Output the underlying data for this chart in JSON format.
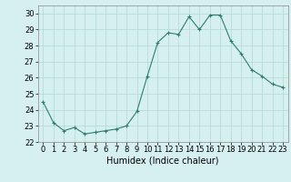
{
  "x": [
    0,
    1,
    2,
    3,
    4,
    5,
    6,
    7,
    8,
    9,
    10,
    11,
    12,
    13,
    14,
    15,
    16,
    17,
    18,
    19,
    20,
    21,
    22,
    23
  ],
  "y": [
    24.5,
    23.2,
    22.7,
    22.9,
    22.5,
    22.6,
    22.7,
    22.8,
    23.0,
    23.9,
    26.1,
    28.2,
    28.8,
    28.7,
    29.8,
    29.0,
    29.9,
    29.9,
    28.3,
    27.5,
    26.5,
    26.1,
    25.6,
    25.4
  ],
  "line_color": "#2e7d6e",
  "marker": "+",
  "bg_color": "#d6f0f0",
  "grid_color": "#b0d8d8",
  "xlabel": "Humidex (Indice chaleur)",
  "xlim": [
    -0.5,
    23.5
  ],
  "ylim": [
    22,
    30.5
  ],
  "yticks": [
    22,
    23,
    24,
    25,
    26,
    27,
    28,
    29,
    30
  ],
  "xticks": [
    0,
    1,
    2,
    3,
    4,
    5,
    6,
    7,
    8,
    9,
    10,
    11,
    12,
    13,
    14,
    15,
    16,
    17,
    18,
    19,
    20,
    21,
    22,
    23
  ],
  "xlabel_fontsize": 7,
  "tick_fontsize": 6
}
